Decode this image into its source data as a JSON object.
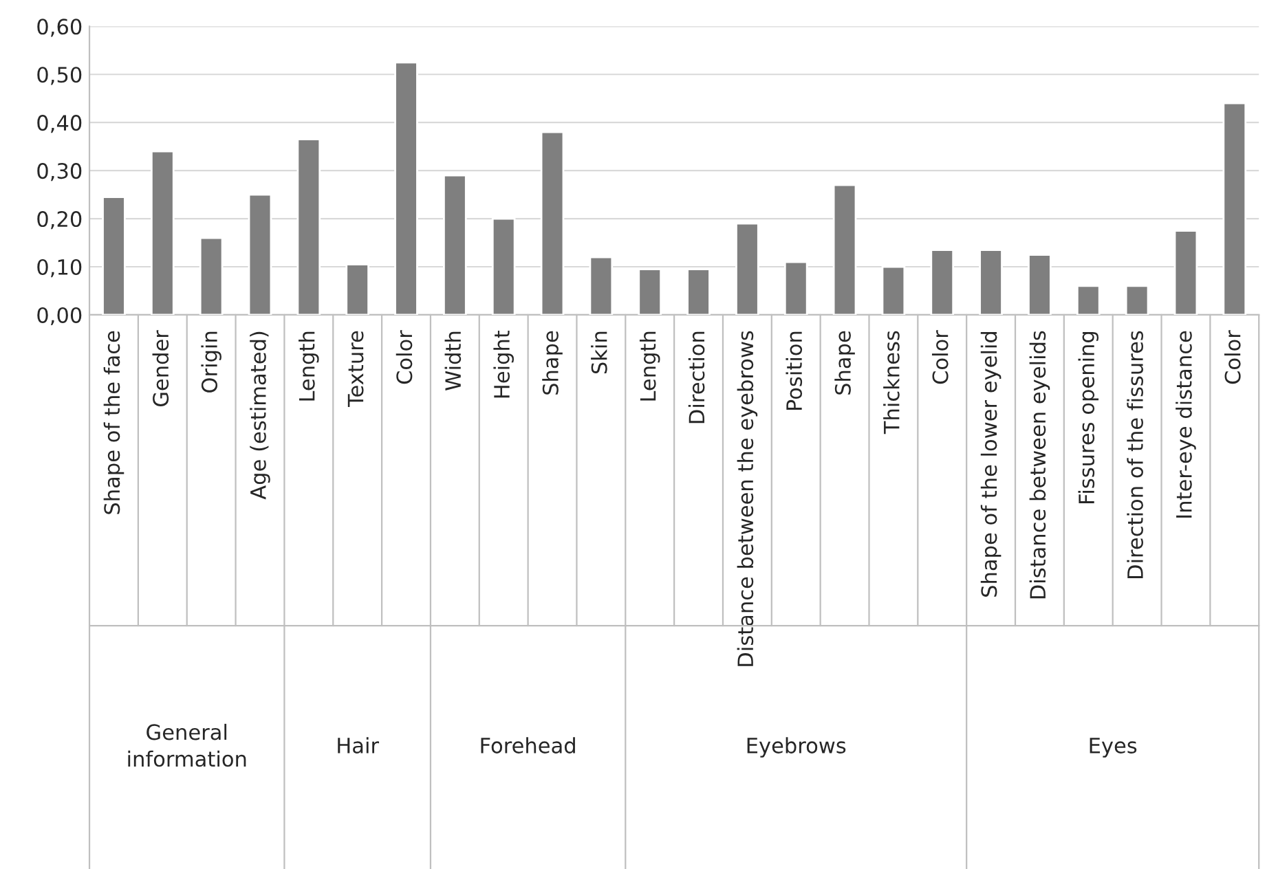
{
  "chart_data": {
    "type": "bar",
    "categories": [
      "Shape of the face",
      "Gender",
      "Origin",
      "Age (estimated)",
      "Length",
      "Texture",
      "Color",
      "Width",
      "Height",
      "Shape",
      "Skin",
      "Length",
      "Direction",
      "Distance between the eyebrows",
      "Position",
      "Shape",
      "Thickness",
      "Color",
      "Shape of the lower eyelid",
      "Distance between eyelids",
      "Fissures opening",
      "Direction of the fissures",
      "Inter-eye distance",
      "Color"
    ],
    "values": [
      0.245,
      0.34,
      0.16,
      0.25,
      0.365,
      0.105,
      0.525,
      0.29,
      0.2,
      0.38,
      0.12,
      0.095,
      0.095,
      0.19,
      0.11,
      0.27,
      0.1,
      0.135,
      0.135,
      0.125,
      0.06,
      0.06,
      0.175,
      0.44
    ],
    "color": "#7f7f7f",
    "annotations": [
      "General\ninformation",
      "Hair",
      "Forehead",
      "Eyebrows",
      "Eyes"
    ],
    "ylim": [
      0,
      0.6
    ],
    "yticks": [
      {
        "value": 0,
        "label": "0,00"
      },
      {
        "value": 0.1,
        "label": "0,10"
      },
      {
        "value": 0.2,
        "label": "0,20"
      },
      {
        "value": 0.3,
        "label": "0,30"
      },
      {
        "value": 0.4,
        "label": "0,40"
      },
      {
        "value": 0.5,
        "label": "0,50"
      },
      {
        "value": 0.6,
        "label": "0,60"
      }
    ],
    "grid": "y"
  }
}
